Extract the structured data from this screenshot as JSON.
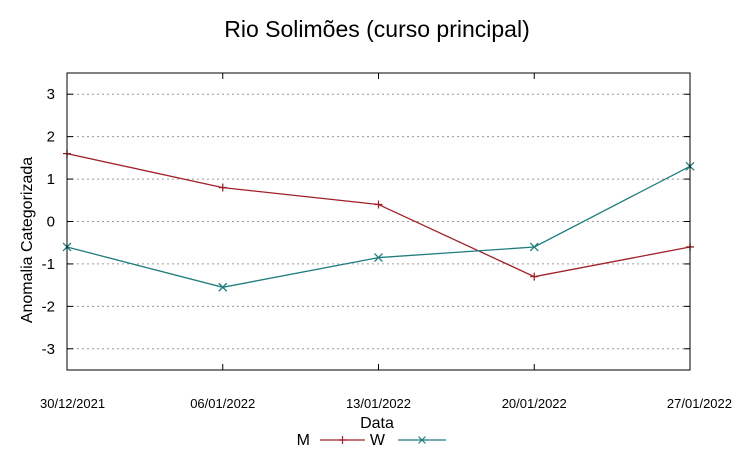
{
  "chart_data": {
    "type": "line",
    "title": "Rio Solimões (curso principal)",
    "xlabel": "Data",
    "ylabel": "Anomalia Categorizada",
    "categories": [
      "30/12/2021",
      "06/01/2022",
      "13/01/2022",
      "20/01/2022",
      "27/01/2022"
    ],
    "ylim": [
      -3.5,
      3.5
    ],
    "yticks": [
      3,
      2,
      1,
      0,
      -1,
      -2,
      -3
    ],
    "grid": "horizontal dotted",
    "legend_position": "bottom",
    "series": [
      {
        "name": "M",
        "color": "#a0202a",
        "marker": "plus",
        "values": [
          1.6,
          0.8,
          0.4,
          -1.3,
          -0.6
        ]
      },
      {
        "name": "W",
        "color": "#1f7d7d",
        "marker": "x",
        "values": [
          -0.6,
          -1.55,
          -0.85,
          -0.6,
          1.3
        ]
      }
    ]
  }
}
